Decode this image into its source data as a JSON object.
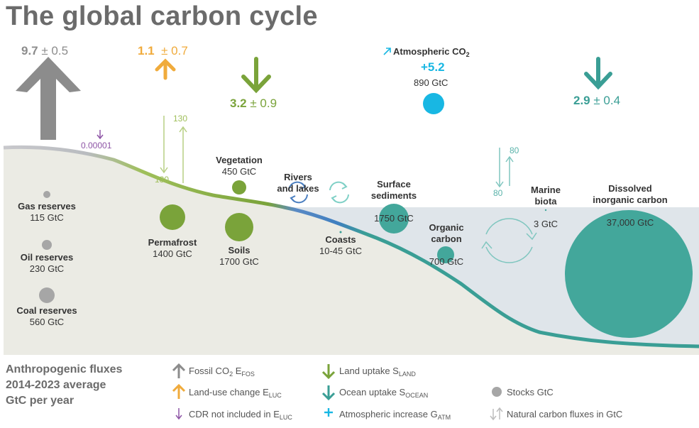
{
  "title": "The global carbon cycle",
  "fluxes": {
    "fossil": {
      "value": "9.7",
      "unc": "± 0.5"
    },
    "luc": {
      "value": "1.1",
      "unc": "± 0.7"
    },
    "land": {
      "value": "3.2",
      "unc": "± 0.9"
    },
    "ocean": {
      "value": "2.9",
      "unc": "± 0.4"
    },
    "cdr": {
      "value": "0.00001"
    },
    "atmosphere": {
      "label": "Atmospheric CO",
      "label_sub": "2",
      "increase": "+5.2",
      "stock": "890 GtC"
    }
  },
  "natural_fluxes": {
    "permafrost_up": "130",
    "permafrost_down": "130",
    "marine_up": "80",
    "marine_down": "80"
  },
  "stocks": [
    {
      "id": "gas",
      "name": "Gas reserves",
      "value": "115 GtC"
    },
    {
      "id": "oil",
      "name": "Oil reserves",
      "value": "230 GtC"
    },
    {
      "id": "coal",
      "name": "Coal reserves",
      "value": "560 GtC"
    },
    {
      "id": "permafrost",
      "name": "Permafrost",
      "value": "1400 GtC"
    },
    {
      "id": "vegetation",
      "name": "Vegetation",
      "value": "450 GtC"
    },
    {
      "id": "soils",
      "name": "Soils",
      "value": "1700 GtC"
    },
    {
      "id": "rivers",
      "name": "Rivers\nand lakes",
      "value": ""
    },
    {
      "id": "coasts",
      "name": "Coasts",
      "value": "10-45 GtC"
    },
    {
      "id": "sediments",
      "name": "Surface\nsediments",
      "value": "1750 GtC"
    },
    {
      "id": "organic",
      "name": "Organic\ncarbon",
      "value": "700 GtC"
    },
    {
      "id": "marine",
      "name": "Marine\nbiota",
      "value": "3 GtC"
    },
    {
      "id": "dic",
      "name": "Dissolved\ninorganic carbon",
      "value": "37,000 GtC"
    }
  ],
  "legend": {
    "heading": [
      "Anthropogenic fluxes",
      "2014-2023 average",
      "GtC per year"
    ],
    "items": [
      {
        "id": "fossil",
        "text": "Fossil CO",
        "sub1": "2",
        "text2": " E",
        "sub2": "FOS",
        "color": "#8c8c8c"
      },
      {
        "id": "luc",
        "text": "Land-use change E",
        "sub2": "LUC",
        "color": "#f0ab3c"
      },
      {
        "id": "cdr",
        "text": "CDR not included in E",
        "sub2": "LUC",
        "color": "#8e55a6"
      },
      {
        "id": "land",
        "text": "Land uptake S",
        "sub2": "LAND",
        "color": "#7aa33a"
      },
      {
        "id": "ocean",
        "text": "Ocean uptake S",
        "sub2": "OCEAN",
        "color": "#3a9e95"
      },
      {
        "id": "atm",
        "text": "Atmospheric increase G",
        "sub2": "ATM",
        "color": "#18b7e3"
      },
      {
        "id": "stocks",
        "text": "Stocks GtC",
        "color": "#a6a6a6"
      },
      {
        "id": "natural",
        "text": "Natural carbon fluxes in GtC",
        "color": "#bdbdbd"
      }
    ]
  },
  "colors": {
    "fossil": "#8c8c8c",
    "luc": "#f0ab3c",
    "land": "#7aa33a",
    "ocean": "#3a9e95",
    "atmosphere": "#18b7e3",
    "cdr": "#8e55a6",
    "ground": "#ebebe4",
    "sea": "#dfe5ea",
    "stock": "#a6a6a6",
    "dic": "#43a79b"
  }
}
